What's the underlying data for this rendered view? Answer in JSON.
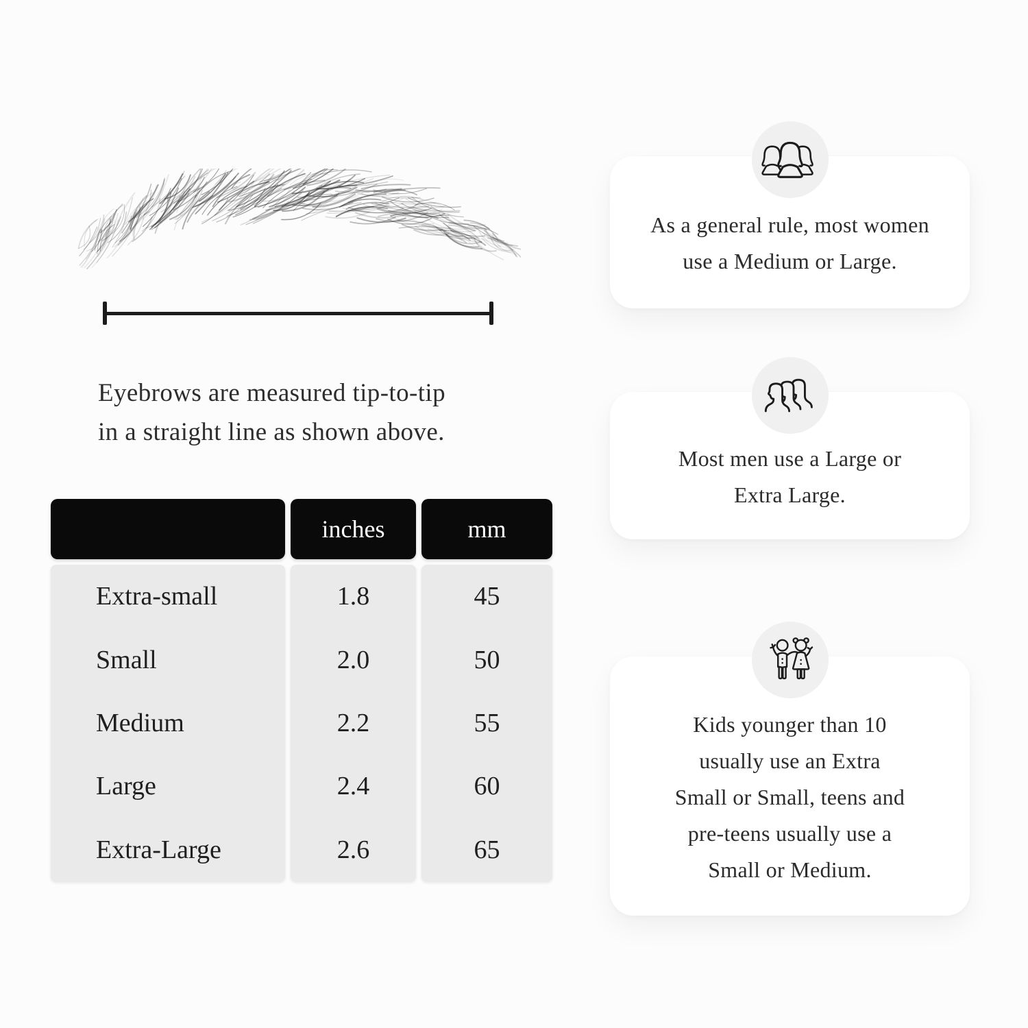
{
  "diagram": {
    "caption_lines": [
      "Eyebrows are measured tip-to-tip",
      "in a straight line as shown above."
    ]
  },
  "size_table": {
    "headers": [
      "",
      "inches",
      "mm"
    ],
    "rows": [
      [
        "Extra-small",
        "1.8",
        "45"
      ],
      [
        "Small",
        "2.0",
        "50"
      ],
      [
        "Medium",
        "2.2",
        "55"
      ],
      [
        "Large",
        "2.4",
        "60"
      ],
      [
        "Extra-Large",
        "2.6",
        "65"
      ]
    ]
  },
  "cards": [
    {
      "icon": "women-group-icon",
      "lines": [
        "As a general rule, most women",
        "use a Medium or Large."
      ]
    },
    {
      "icon": "men-group-icon",
      "lines": [
        "Most men use a Large or",
        "Extra Large."
      ]
    },
    {
      "icon": "kids-icon",
      "lines": [
        "Kids younger than 10",
        "usually use an Extra",
        "Small or Small, teens and",
        "pre-teens usually use a",
        "Small or Medium."
      ]
    }
  ],
  "colors": {
    "page_bg": "#fcfcfc",
    "card_bg": "#ffffff",
    "icon_circle_bg": "#f0f0f0",
    "icon_stroke": "#1c1c1c",
    "table_header_bg": "#0a0a0a",
    "table_header_text": "#ffffff",
    "table_body_bg": "#eaeaea",
    "text": "#2b2b2b",
    "line": "#1c1c1c"
  }
}
